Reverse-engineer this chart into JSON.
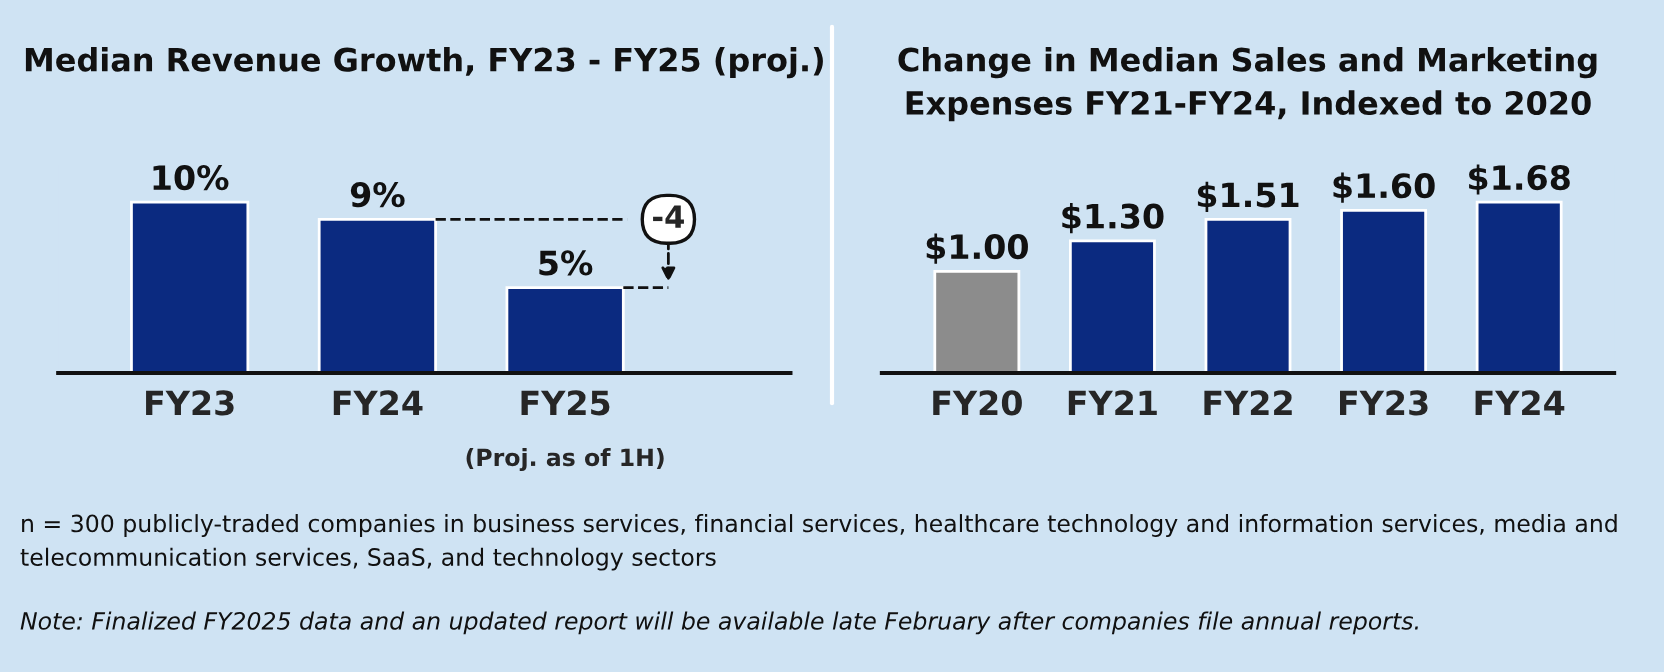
{
  "chart_data": [
    {
      "type": "bar",
      "title": "Median Revenue Growth, FY23 - FY25 (proj.)",
      "categories": [
        "FY23",
        "FY24",
        "FY25"
      ],
      "values": [
        10,
        9,
        5
      ],
      "value_labels": [
        "10%",
        "9%",
        "5%"
      ],
      "color": "#0b2a80",
      "annotations": [
        "-4",
        "(Proj. as of 1H)"
      ]
    },
    {
      "type": "bar",
      "title": "Change in Median Sales and Marketing\nExpenses FY21-FY24, Indexed to 2020",
      "categories": [
        "FY20",
        "FY21",
        "FY22",
        "FY23",
        "FY24"
      ],
      "values": [
        1.0,
        1.3,
        1.51,
        1.6,
        1.68
      ],
      "value_labels": [
        "$1.00",
        "$1.30",
        "$1.51",
        "$1.60",
        "$1.68"
      ],
      "colors": [
        "#8c8c8c",
        "#0b2a80",
        "#0b2a80",
        "#0b2a80",
        "#0b2a80"
      ],
      "annotations": [
        "n = 300 publicly-traded companies in business services, financial services, healthcare technology and information services, media and telecommunication services, SaaS, and technology sectors",
        "Note: Finalized FY2025 data and an updated report will be available late February after companies file annual reports."
      ]
    }
  ]
}
